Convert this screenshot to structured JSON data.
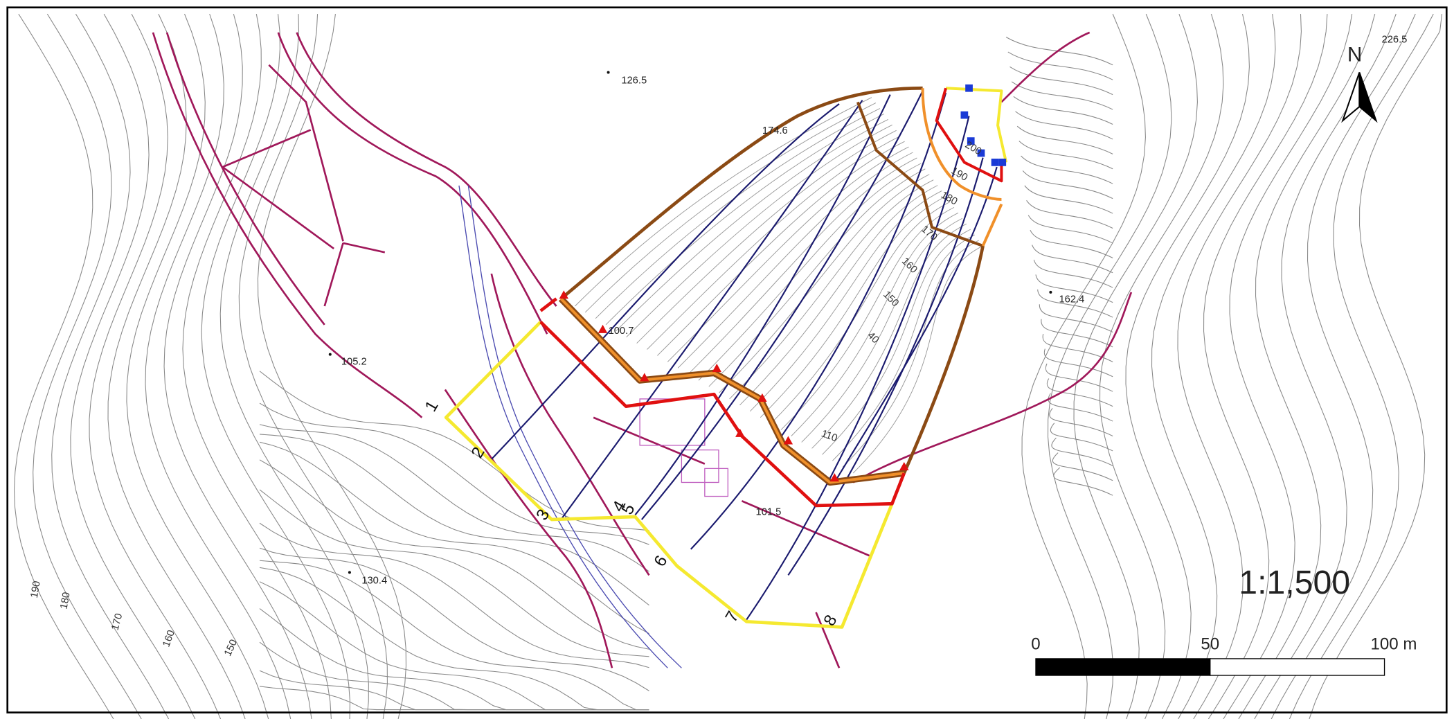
{
  "map": {
    "north": "N",
    "spot_heights": [
      "126.5",
      "174.6",
      "162.4",
      "105.2",
      "100.7",
      "101.5",
      "130.4",
      "226.5"
    ],
    "contour_labels": [
      "190",
      "180",
      "170",
      "160",
      "150",
      "200",
      "190",
      "180",
      "170",
      "160",
      "150",
      "40",
      "110"
    ],
    "section_labels": [
      "1",
      "2",
      "3",
      "4",
      "5",
      "6",
      "7",
      "8"
    ],
    "scale": "1:1,500",
    "scale_bar": [
      "0",
      "50",
      "100 m"
    ]
  }
}
